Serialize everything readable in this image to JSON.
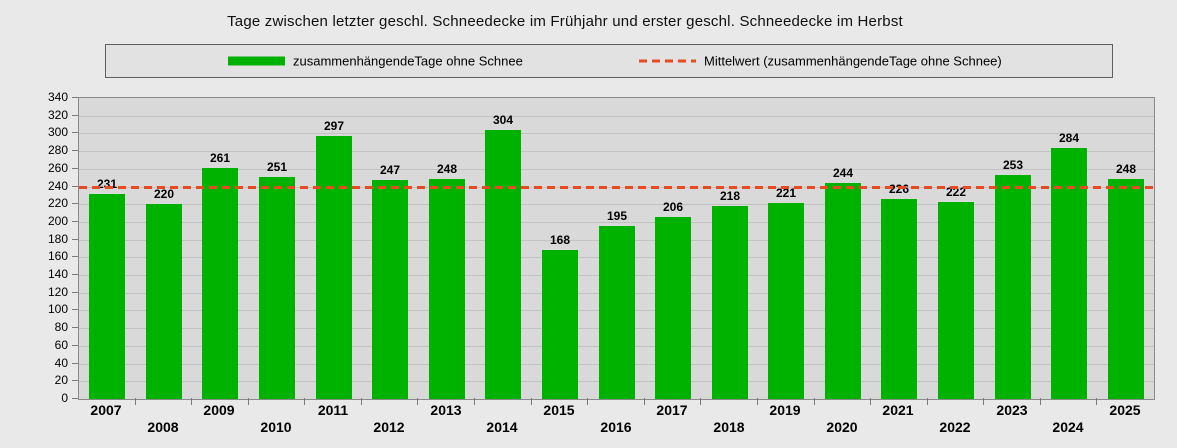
{
  "title": "Tage zwischen letzter geschl. Schneedecke im Frühjahr und erster geschl. Schneedecke im Herbst",
  "legend": {
    "series_label": "zusammenhängendeTage ohne Schnee",
    "mean_label": "Mittelwert (zusammenhängendeTage ohne Schnee)"
  },
  "colors": {
    "bar": "#00b200",
    "mean_line": "#e84a22",
    "plot_background": "#d9d9d9",
    "page_background": "#e9e9e9",
    "grid": "#c2c2c2",
    "text": "#000000"
  },
  "chart_data": {
    "type": "bar",
    "title": "Tage zwischen letzter geschl. Schneedecke im Frühjahr und erster geschl. Schneedecke im Herbst",
    "categories": [
      "2007",
      "2008",
      "2009",
      "2010",
      "2011",
      "2012",
      "2013",
      "2014",
      "2015",
      "2016",
      "2017",
      "2018",
      "2019",
      "2020",
      "2021",
      "2022",
      "2023",
      "2024",
      "2025"
    ],
    "series": [
      {
        "name": "zusammenhängendeTage ohne Schnee",
        "values": [
          231,
          220,
          261,
          251,
          297,
          247,
          248,
          304,
          168,
          195,
          206,
          218,
          221,
          244,
          226,
          222,
          253,
          284,
          248
        ]
      }
    ],
    "mean_line": {
      "name": "Mittelwert (zusammenhängendeTage ohne Schnee)",
      "value": 239.2,
      "style": "dashed"
    },
    "xlabel": "",
    "ylabel": "",
    "ylim": [
      0,
      340
    ],
    "ytick_step": 20,
    "grid": true,
    "legend_position": "top",
    "bar_labels": true,
    "x_labels_staggered": true
  }
}
